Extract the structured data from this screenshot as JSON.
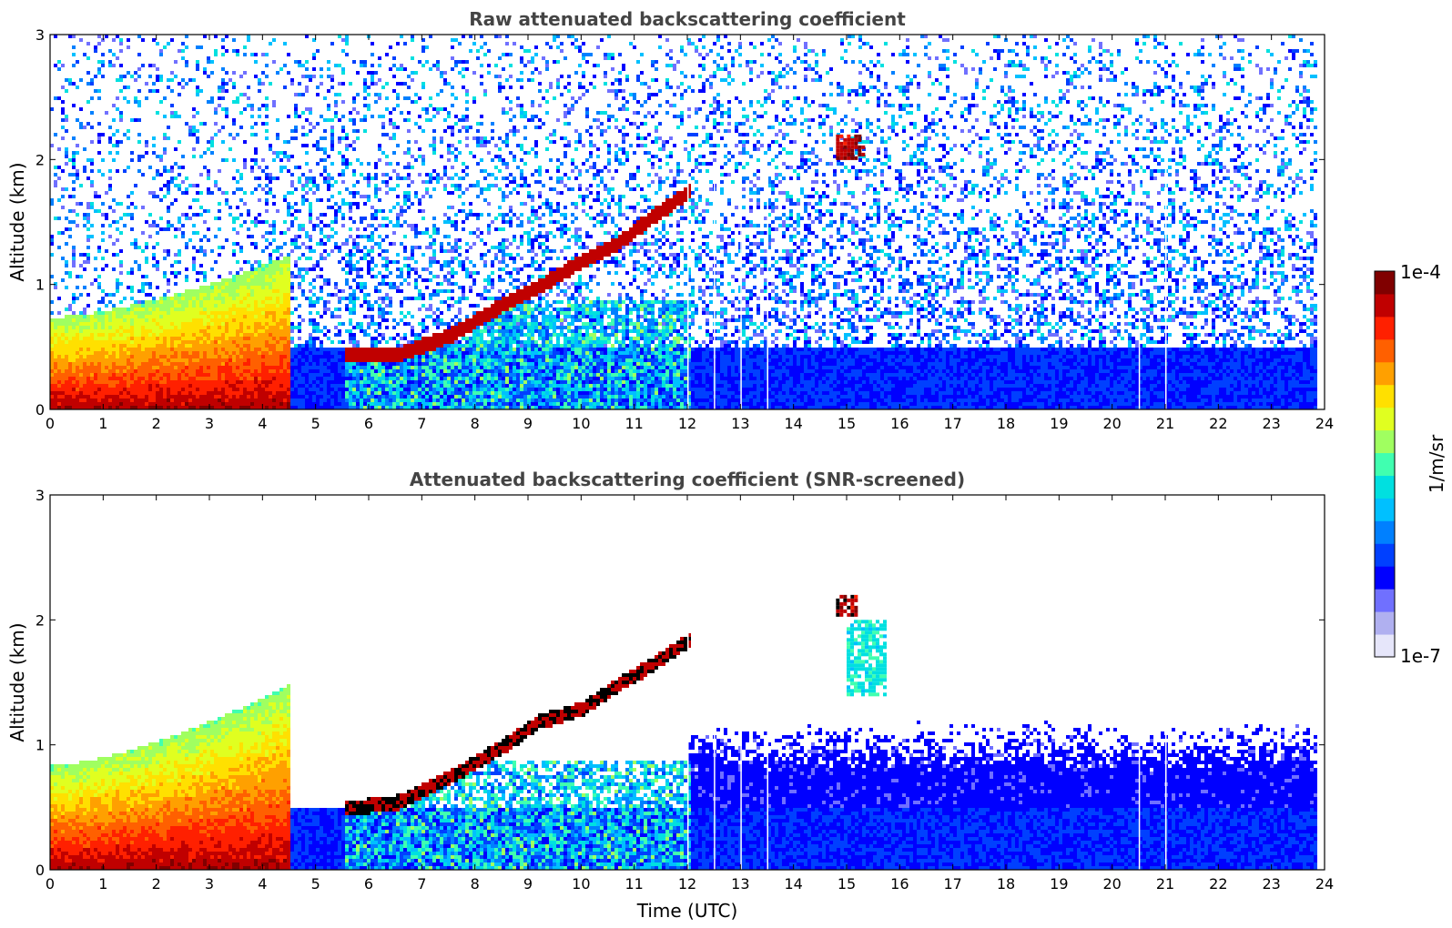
{
  "chart_data": [
    {
      "type": "heatmap",
      "title": "Raw attenuated backscattering coefficient",
      "xlabel": "",
      "ylabel": "Altitude (km)",
      "xlim": [
        0,
        24
      ],
      "ylim": [
        0,
        3
      ],
      "x_ticks": [
        "0",
        "1",
        "2",
        "3",
        "4",
        "5",
        "6",
        "7",
        "8",
        "9",
        "10",
        "11",
        "12",
        "13",
        "14",
        "15",
        "16",
        "17",
        "18",
        "19",
        "20",
        "21",
        "22",
        "23",
        "24"
      ],
      "y_ticks": [
        "0",
        "1",
        "2",
        "3"
      ],
      "data_end_time": 23.8,
      "features": [
        {
          "type": "dense_low_layer",
          "t": [
            0,
            4.5
          ],
          "top_km": [
            0.75,
            1.25
          ],
          "level": "high"
        },
        {
          "type": "cloud_layer",
          "points": [
            [
              5.5,
              0.45
            ],
            [
              6.5,
              0.45
            ],
            [
              7.5,
              0.6
            ],
            [
              8.5,
              0.85
            ],
            [
              9.2,
              1.0
            ],
            [
              10.0,
              1.2
            ],
            [
              10.7,
              1.35
            ],
            [
              11.3,
              1.55
            ],
            [
              12.0,
              1.75
            ]
          ],
          "level": "very-high"
        },
        {
          "type": "cloud_patch",
          "t": [
            14.8,
            15.3
          ],
          "alt_km": [
            2.0,
            2.2
          ],
          "level": "very-high"
        },
        {
          "type": "noise_region",
          "t": [
            4.5,
            23.8
          ],
          "alt_km": [
            0.5,
            3.0
          ],
          "level": "low"
        }
      ],
      "data_gaps_utc": [
        12.0,
        12.5,
        13.0,
        13.5,
        20.5,
        21.0
      ]
    },
    {
      "type": "heatmap",
      "title": "Attenuated backscattering coefficient (SNR-screened)",
      "xlabel": "Time (UTC)",
      "ylabel": "Altitude (km)",
      "xlim": [
        0,
        24
      ],
      "ylim": [
        0,
        3
      ],
      "x_ticks": [
        "0",
        "1",
        "2",
        "3",
        "4",
        "5",
        "6",
        "7",
        "8",
        "9",
        "10",
        "11",
        "12",
        "13",
        "14",
        "15",
        "16",
        "17",
        "18",
        "19",
        "20",
        "21",
        "22",
        "23",
        "24"
      ],
      "y_ticks": [
        "0",
        "1",
        "2",
        "3"
      ],
      "data_end_time": 23.8,
      "features": [
        {
          "type": "dense_low_layer",
          "t": [
            0,
            4.5
          ],
          "top_km": [
            0.85,
            1.5
          ],
          "level": "high"
        },
        {
          "type": "cloud_layer",
          "points": [
            [
              5.5,
              0.5
            ],
            [
              6.5,
              0.55
            ],
            [
              7.5,
              0.75
            ],
            [
              8.5,
              1.0
            ],
            [
              9.2,
              1.2
            ],
            [
              10.0,
              1.3
            ],
            [
              10.7,
              1.5
            ],
            [
              11.3,
              1.65
            ],
            [
              12.0,
              1.85
            ]
          ],
          "level": "saturated"
        },
        {
          "type": "cloud_patch",
          "t": [
            14.8,
            15.2
          ],
          "alt_km": [
            2.05,
            2.2
          ],
          "level": "saturated"
        },
        {
          "type": "cloud_patch",
          "t": [
            15.0,
            15.7
          ],
          "alt_km": [
            1.4,
            2.0
          ],
          "level": "medium"
        },
        {
          "type": "boundary_layer",
          "t": [
            12.0,
            23.8
          ],
          "top_km": [
            0.8,
            1.2
          ],
          "level": "low"
        }
      ],
      "data_gaps_utc": [
        12.0,
        12.5,
        13.0,
        13.5,
        20.5,
        21.0
      ]
    }
  ],
  "colorbar": {
    "max_label": "1e-4",
    "min_label": "1e-7",
    "unit": "1/m/sr",
    "colors": [
      "#e6e6fa",
      "#b0b0f0",
      "#7070ff",
      "#0000ff",
      "#0040ff",
      "#0080ff",
      "#00c0ff",
      "#00e0e0",
      "#40ffb0",
      "#a0ff60",
      "#e0ff20",
      "#ffe000",
      "#ffa000",
      "#ff6000",
      "#ff2000",
      "#c00000",
      "#800000"
    ]
  }
}
